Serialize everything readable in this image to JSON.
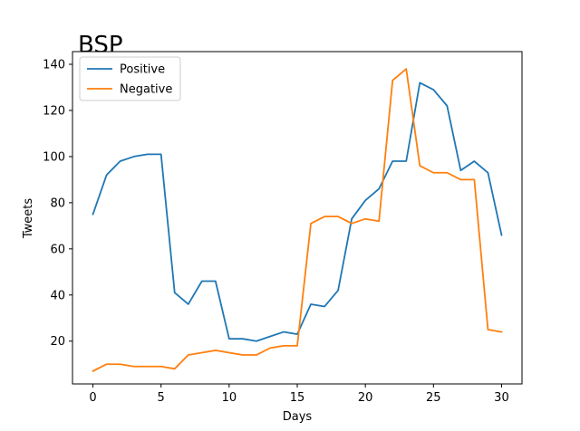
{
  "chart_data": {
    "type": "line",
    "title": "BSP",
    "xlabel": "Days",
    "ylabel": "Tweets",
    "xlim": [
      -1.5,
      31.5
    ],
    "ylim": [
      1.45,
      145.5
    ],
    "xticks": [
      0,
      5,
      10,
      15,
      20,
      25,
      30
    ],
    "yticks": [
      20,
      40,
      60,
      80,
      100,
      120,
      140
    ],
    "grid": false,
    "legend_position": "top-left",
    "x": [
      0,
      1,
      2,
      3,
      4,
      5,
      6,
      7,
      8,
      9,
      10,
      11,
      12,
      13,
      14,
      15,
      16,
      17,
      18,
      19,
      20,
      21,
      22,
      23,
      24,
      25,
      26,
      27,
      28,
      29,
      30
    ],
    "series": [
      {
        "name": "Positive",
        "color": "#1f77b4",
        "values": [
          75,
          92,
          98,
          100,
          101,
          101,
          41,
          36,
          46,
          46,
          21,
          21,
          20,
          22,
          24,
          23,
          36,
          35,
          42,
          73,
          81,
          86,
          98,
          98,
          132,
          129,
          122,
          94,
          98,
          93,
          66
        ]
      },
      {
        "name": "Negative",
        "color": "#ff7f0e",
        "values": [
          7,
          10,
          10,
          9,
          9,
          9,
          8,
          14,
          15,
          16,
          15,
          14,
          14,
          17,
          18,
          18,
          71,
          74,
          74,
          71,
          73,
          72,
          133,
          138,
          96,
          93,
          93,
          90,
          90,
          25,
          24
        ]
      }
    ]
  }
}
